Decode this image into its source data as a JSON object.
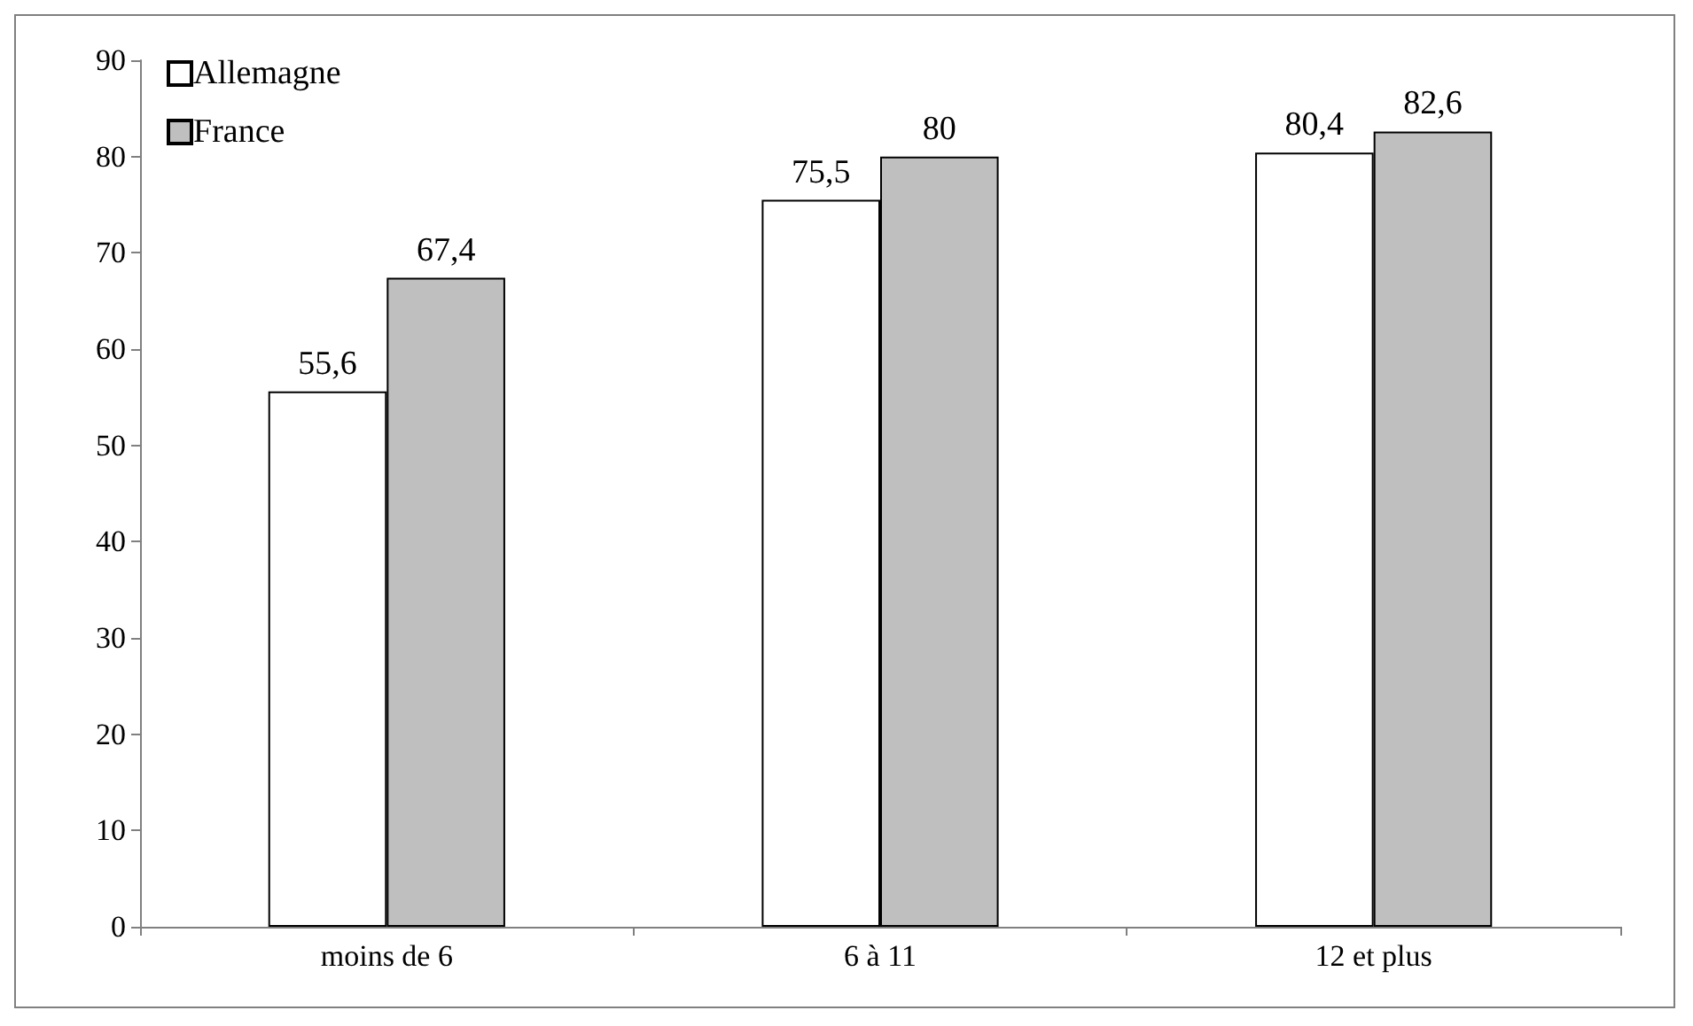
{
  "chart_data": {
    "type": "bar",
    "categories": [
      "moins de 6",
      "6 à 11",
      "12 et plus"
    ],
    "series": [
      {
        "name": "Allemagne",
        "color": "#ffffff",
        "values": [
          55.6,
          75.5,
          80.4
        ],
        "value_labels": [
          "55,6",
          "75,5",
          "80,4"
        ]
      },
      {
        "name": "France",
        "color": "#bfbfbf",
        "values": [
          67.4,
          80,
          82.6
        ],
        "value_labels": [
          "67,4",
          "80",
          "82,6"
        ]
      }
    ],
    "ylim": [
      0,
      90
    ],
    "yticks": [
      0,
      10,
      20,
      30,
      40,
      50,
      60,
      70,
      80,
      90
    ],
    "grid": false,
    "legend": "top left"
  }
}
